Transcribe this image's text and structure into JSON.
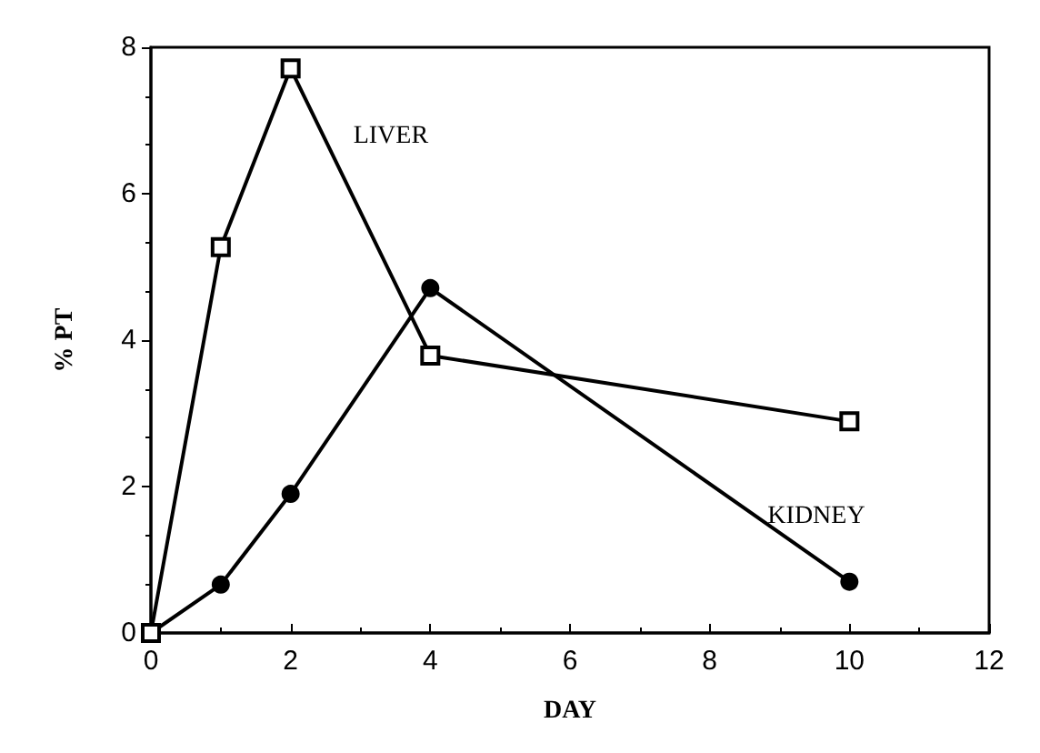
{
  "chart_data": {
    "type": "line",
    "xlabel": "DAY",
    "ylabel": "% PT",
    "x": [
      0,
      1,
      2,
      4,
      10
    ],
    "series": [
      {
        "name": "LIVER",
        "color": "#000000",
        "marker": "square",
        "values": [
          0,
          5.27,
          7.71,
          3.79,
          2.89
        ]
      },
      {
        "name": "KIDNEY",
        "color": "#000000",
        "marker": "circle",
        "values": [
          0,
          0.66,
          1.9,
          4.71,
          0.7
        ]
      }
    ],
    "xlim": [
      0,
      12
    ],
    "xticks": [
      0,
      2,
      4,
      6,
      8,
      10,
      12
    ],
    "ylim": [
      0,
      8
    ],
    "yticks": [
      0,
      2,
      4,
      6,
      8
    ],
    "grid": false,
    "legend": false,
    "line_style": "solid"
  }
}
